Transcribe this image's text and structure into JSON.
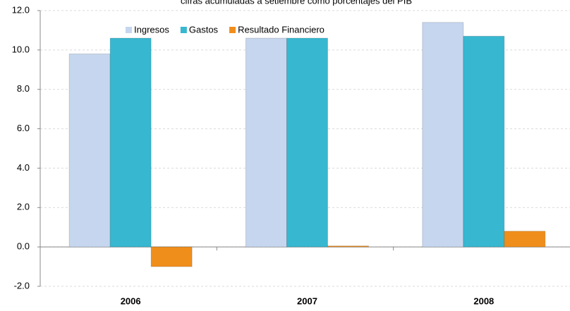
{
  "chart_data": {
    "type": "bar",
    "title": "cifras acumuladas a setiembre como porcentajes del PIB",
    "categories": [
      "2006",
      "2007",
      "2008"
    ],
    "series": [
      {
        "name": "Ingresos",
        "color": "#c6d6ef",
        "values": [
          9.8,
          10.6,
          11.4
        ]
      },
      {
        "name": "Gastos",
        "color": "#37b7d0",
        "values": [
          10.6,
          10.6,
          10.7
        ]
      },
      {
        "name": "Resultado Financiero",
        "color": "#f08e1c",
        "values": [
          -1.0,
          0.05,
          0.8
        ]
      }
    ],
    "ylim": [
      -2,
      12
    ],
    "yticks": [
      {
        "value": -2,
        "label": "-2.0"
      },
      {
        "value": 0,
        "label": "0.0"
      },
      {
        "value": 2,
        "label": "2.0"
      },
      {
        "value": 4,
        "label": "4.0"
      },
      {
        "value": 6,
        "label": "6.0"
      },
      {
        "value": 8,
        "label": "8.0"
      },
      {
        "value": 10,
        "label": "10.0"
      },
      {
        "value": 12,
        "label": "12.0"
      }
    ],
    "grid": true
  }
}
